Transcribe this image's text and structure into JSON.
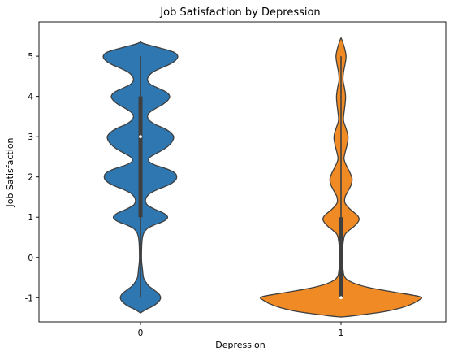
{
  "chart_data": {
    "type": "violin",
    "title": "Job Satisfaction by Depression",
    "xlabel": "Depression",
    "ylabel": "Job Satisfaction",
    "categories": [
      "0",
      "1"
    ],
    "ylim": [
      -1.6,
      5.85
    ],
    "yticks": [
      "-1",
      "0",
      "1",
      "2",
      "3",
      "4",
      "5"
    ],
    "grid": false,
    "series": [
      {
        "category": "0",
        "color": "#2e77b0",
        "quartiles": {
          "q1": 1,
          "median": 3,
          "q3": 4,
          "whisker_low": -1,
          "whisker_high": 5
        },
        "density_profile": [
          [
            -1.38,
            0.0
          ],
          [
            -1.3,
            0.05
          ],
          [
            -1.2,
            0.13
          ],
          [
            -1.1,
            0.18
          ],
          [
            -1.0,
            0.2
          ],
          [
            -0.9,
            0.18
          ],
          [
            -0.8,
            0.13
          ],
          [
            -0.7,
            0.08
          ],
          [
            -0.6,
            0.05
          ],
          [
            -0.5,
            0.03
          ],
          [
            -0.3,
            0.02
          ],
          [
            0.0,
            0.01
          ],
          [
            0.5,
            0.02
          ],
          [
            0.7,
            0.06
          ],
          [
            0.8,
            0.13
          ],
          [
            0.9,
            0.23
          ],
          [
            1.0,
            0.27
          ],
          [
            1.1,
            0.23
          ],
          [
            1.2,
            0.14
          ],
          [
            1.3,
            0.07
          ],
          [
            1.4,
            0.05
          ],
          [
            1.5,
            0.06
          ],
          [
            1.6,
            0.1
          ],
          [
            1.7,
            0.18
          ],
          [
            1.8,
            0.28
          ],
          [
            1.9,
            0.34
          ],
          [
            2.0,
            0.36
          ],
          [
            2.1,
            0.34
          ],
          [
            2.2,
            0.26
          ],
          [
            2.3,
            0.14
          ],
          [
            2.4,
            0.08
          ],
          [
            2.5,
            0.1
          ],
          [
            2.6,
            0.17
          ],
          [
            2.7,
            0.24
          ],
          [
            2.8,
            0.29
          ],
          [
            2.9,
            0.32
          ],
          [
            3.0,
            0.33
          ],
          [
            3.1,
            0.3
          ],
          [
            3.2,
            0.24
          ],
          [
            3.3,
            0.15
          ],
          [
            3.4,
            0.09
          ],
          [
            3.5,
            0.07
          ],
          [
            3.6,
            0.09
          ],
          [
            3.7,
            0.15
          ],
          [
            3.8,
            0.22
          ],
          [
            3.9,
            0.27
          ],
          [
            4.0,
            0.29
          ],
          [
            4.1,
            0.26
          ],
          [
            4.2,
            0.18
          ],
          [
            4.3,
            0.1
          ],
          [
            4.4,
            0.07
          ],
          [
            4.5,
            0.08
          ],
          [
            4.6,
            0.12
          ],
          [
            4.7,
            0.2
          ],
          [
            4.8,
            0.29
          ],
          [
            4.9,
            0.35
          ],
          [
            5.0,
            0.37
          ],
          [
            5.1,
            0.33
          ],
          [
            5.2,
            0.2
          ],
          [
            5.3,
            0.05
          ],
          [
            5.35,
            0.0
          ]
        ]
      },
      {
        "category": "1",
        "color": "#f08a24",
        "quartiles": {
          "q1": -1,
          "median": -1,
          "q3": 1,
          "whisker_low": -1,
          "whisker_high": 5
        },
        "density_profile": [
          [
            -1.48,
            0.0
          ],
          [
            -1.45,
            0.12
          ],
          [
            -1.35,
            0.42
          ],
          [
            -1.25,
            0.6
          ],
          [
            -1.15,
            0.71
          ],
          [
            -1.05,
            0.78
          ],
          [
            -1.0,
            0.8
          ],
          [
            -0.95,
            0.74
          ],
          [
            -0.85,
            0.5
          ],
          [
            -0.75,
            0.28
          ],
          [
            -0.65,
            0.14
          ],
          [
            -0.55,
            0.06
          ],
          [
            -0.45,
            0.03
          ],
          [
            -0.3,
            0.02
          ],
          [
            0.0,
            0.01
          ],
          [
            0.5,
            0.03
          ],
          [
            0.65,
            0.07
          ],
          [
            0.75,
            0.12
          ],
          [
            0.85,
            0.16
          ],
          [
            0.95,
            0.18
          ],
          [
            1.05,
            0.16
          ],
          [
            1.2,
            0.09
          ],
          [
            1.35,
            0.04
          ],
          [
            1.5,
            0.04
          ],
          [
            1.65,
            0.07
          ],
          [
            1.8,
            0.1
          ],
          [
            1.95,
            0.11
          ],
          [
            2.1,
            0.09
          ],
          [
            2.3,
            0.05
          ],
          [
            2.45,
            0.03
          ],
          [
            2.6,
            0.04
          ],
          [
            2.8,
            0.06
          ],
          [
            3.0,
            0.07
          ],
          [
            3.2,
            0.05
          ],
          [
            3.4,
            0.025
          ],
          [
            3.6,
            0.03
          ],
          [
            3.8,
            0.04
          ],
          [
            4.0,
            0.045
          ],
          [
            4.2,
            0.035
          ],
          [
            4.4,
            0.02
          ],
          [
            4.6,
            0.025
          ],
          [
            4.8,
            0.04
          ],
          [
            5.0,
            0.05
          ],
          [
            5.2,
            0.035
          ],
          [
            5.4,
            0.01
          ],
          [
            5.45,
            0.0
          ]
        ]
      }
    ]
  }
}
